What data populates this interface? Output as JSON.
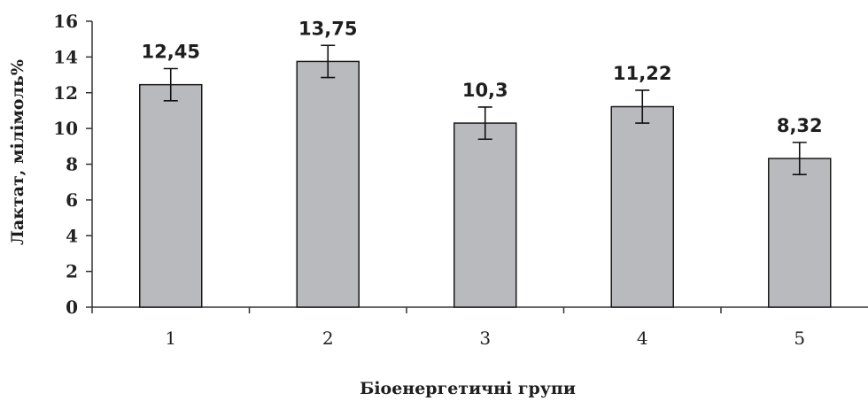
{
  "chart_data": {
    "type": "bar",
    "title": "",
    "categories": [
      "1",
      "2",
      "3",
      "4",
      "5"
    ],
    "values": [
      12.45,
      13.75,
      10.3,
      11.22,
      8.32
    ],
    "data_labels": [
      "12,45",
      "13,75",
      "10,3",
      "11,22",
      "8,32"
    ],
    "error_lower": [
      11.55,
      12.85,
      9.4,
      10.3,
      7.42
    ],
    "error_upper": [
      13.35,
      14.65,
      11.2,
      12.14,
      9.22
    ],
    "ylim": [
      0,
      16
    ],
    "yticks": [
      0,
      2,
      4,
      6,
      8,
      10,
      12,
      14,
      16
    ],
    "xlabel": "Біоенергетичні групи",
    "ylabel": "Лактат, мілімоль%",
    "grid": false,
    "legend": "none",
    "bar_color": "#b9babd",
    "bar_edge_color": "#1a1a1a"
  }
}
